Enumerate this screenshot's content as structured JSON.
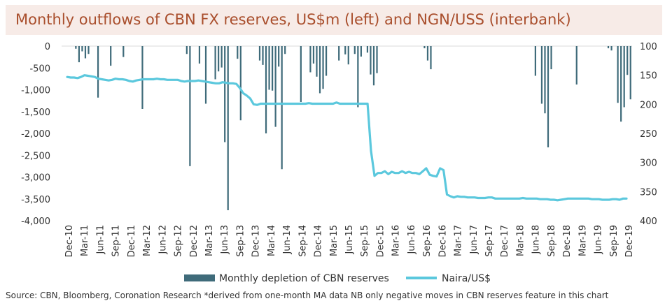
{
  "title": "Monthly outflows of CBN FX reserves, US$m (left) and NGN/USS (interbank)",
  "source": "Source: CBN, Bloomberg, Coronation Research *derived from one-month MA data  NB only negative moves in CBN reserves feature in this chart",
  "colors": {
    "bars": "#3f6b7a",
    "line": "#5bc8dd",
    "title_bg": "#f7ebe7",
    "title_text": "#a94e2c"
  },
  "chart_data": {
    "type": "bar+line",
    "title": "Monthly outflows of CBN FX reserves, US$m (left) and NGN/USS (interbank)",
    "x_tick_labels": [
      "Dec-10",
      "Mar-11",
      "Jun-11",
      "Sep-11",
      "Dec-11",
      "Mar-12",
      "Jun-12",
      "Sep-12",
      "Dec-12",
      "Mar-13",
      "Jun-13",
      "Sep-13",
      "Dec-13",
      "Mar-14",
      "Jun-14",
      "Sep-14",
      "Dec-14",
      "Mar-15",
      "Jun-15",
      "Sep-15",
      "Dec-15",
      "Mar-16",
      "Jun-16",
      "Sep-16",
      "Dec-16",
      "Mar-17",
      "Jun-17",
      "Sep-17",
      "Dec-17",
      "Mar-18",
      "Jun-18",
      "Sep-18",
      "Dec-18",
      "Mar-19",
      "Jun-19",
      "Sep-19",
      "Dec-19"
    ],
    "y_left": {
      "ticks": [
        "0",
        "-500",
        "-1,000",
        "-1,500",
        "-2,000",
        "-2,500",
        "-3,000",
        "-3,500",
        "-4,000"
      ],
      "range": [
        -4000,
        0
      ]
    },
    "y_right": {
      "ticks": [
        "100",
        "150",
        "200",
        "250",
        "300",
        "350",
        "400"
      ],
      "range": [
        100,
        400
      ],
      "inverted": true
    },
    "legend": {
      "position": "bottom",
      "entries": [
        "Monthly depletion of CBN reserves",
        "Naira/US$"
      ]
    },
    "series": [
      {
        "name": "Monthly depletion of CBN reserves",
        "type": "bar",
        "axis": "left",
        "values": [
          0,
          0,
          0,
          0,
          -60,
          -370,
          -120,
          -280,
          -180,
          0,
          0,
          -1180,
          0,
          0,
          0,
          -450,
          0,
          0,
          0,
          -250,
          0,
          0,
          0,
          0,
          0,
          -1440,
          0,
          0,
          0,
          0,
          0,
          0,
          0,
          0,
          0,
          0,
          0,
          0,
          0,
          -180,
          -2750,
          0,
          0,
          -400,
          0,
          -1320,
          0,
          0,
          -760,
          -580,
          -490,
          -2200,
          -3760,
          0,
          0,
          -290,
          -1700,
          0,
          0,
          0,
          0,
          0,
          -330,
          -430,
          -2000,
          -1000,
          -1020,
          -1850,
          -470,
          -2820,
          -180,
          0,
          0,
          0,
          0,
          -1280,
          0,
          0,
          -600,
          -400,
          -700,
          -1080,
          -980,
          -680,
          0,
          0,
          0,
          -330,
          0,
          -190,
          -420,
          0,
          -180,
          -1400,
          -240,
          0,
          -150,
          -650,
          -900,
          -620,
          0,
          0,
          0,
          0,
          0,
          0,
          0,
          0,
          0,
          0,
          0,
          0,
          0,
          0,
          -50,
          -330,
          -530,
          0,
          0,
          0,
          0,
          0,
          0,
          0,
          0,
          0,
          0,
          0,
          0,
          0,
          0,
          0,
          0,
          0,
          0,
          0,
          0,
          0,
          0,
          0,
          0,
          0,
          0,
          0,
          0,
          0,
          0,
          0,
          0,
          -680,
          0,
          -1320,
          -1540,
          -2320,
          -530,
          0,
          0,
          0,
          0,
          0,
          0,
          0,
          -880,
          0,
          0,
          0,
          0,
          0,
          0,
          0,
          0,
          0,
          -50,
          -100,
          0,
          -1300,
          -1730,
          -1400,
          -660,
          -1220
        ]
      },
      {
        "name": "Naira/US$",
        "type": "line",
        "axis": "right",
        "values": [
          153,
          154,
          154,
          155,
          153,
          150,
          151,
          152,
          153,
          156,
          157,
          158,
          159,
          158,
          156,
          157,
          157,
          158,
          160,
          161,
          159,
          158,
          157,
          157,
          157,
          157,
          156,
          157,
          157,
          158,
          158,
          158,
          158,
          160,
          161,
          160,
          160,
          160,
          159,
          160,
          161,
          162,
          163,
          164,
          164,
          162,
          163,
          164,
          164,
          165,
          172,
          181,
          185,
          190,
          200,
          201,
          199,
          199,
          199,
          199,
          199,
          199,
          199,
          199,
          199,
          199,
          199,
          199,
          199,
          199,
          198,
          199,
          199,
          199,
          199,
          199,
          199,
          199,
          197,
          199,
          199,
          199,
          199,
          199,
          199,
          199,
          199,
          199,
          280,
          323,
          318,
          318,
          315,
          320,
          316,
          318,
          318,
          315,
          318,
          316,
          318,
          318,
          320,
          315,
          310,
          321,
          323,
          324,
          310,
          313,
          355,
          358,
          360,
          358,
          359,
          359,
          360,
          360,
          360,
          361,
          361,
          361,
          360,
          360,
          362,
          362,
          362,
          362,
          362,
          362,
          362,
          362,
          361,
          362,
          362,
          362,
          362,
          363,
          363,
          363,
          364,
          364,
          365,
          364,
          363,
          362,
          362,
          362,
          362,
          362,
          362,
          362,
          363,
          363,
          363,
          364,
          364,
          364,
          363,
          363,
          364,
          362,
          362
        ]
      }
    ]
  }
}
